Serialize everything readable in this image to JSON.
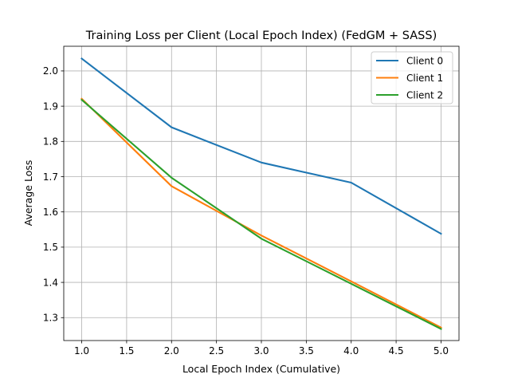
{
  "chart_data": {
    "type": "line",
    "title": "Training Loss per Client (Local Epoch Index) (FedGM + SASS)",
    "xlabel": "Local Epoch Index (Cumulative)",
    "ylabel": "Average Loss",
    "xlim": [
      0.8,
      5.2
    ],
    "ylim": [
      1.235,
      2.07
    ],
    "xticks": [
      1.0,
      1.5,
      2.0,
      2.5,
      3.0,
      3.5,
      4.0,
      4.5,
      5.0
    ],
    "xtick_labels": [
      "1.0",
      "1.5",
      "2.0",
      "2.5",
      "3.0",
      "3.5",
      "4.0",
      "4.5",
      "5.0"
    ],
    "yticks": [
      1.3,
      1.4,
      1.5,
      1.6,
      1.7,
      1.8,
      1.9,
      2.0
    ],
    "ytick_labels": [
      "1.3",
      "1.4",
      "1.5",
      "1.6",
      "1.7",
      "1.8",
      "1.9",
      "2.0"
    ],
    "grid": true,
    "legend_position": "top-right",
    "x": [
      1,
      2,
      3,
      4,
      5
    ],
    "series": [
      {
        "name": "Client 0",
        "color": "#1f77b4",
        "values": [
          2.035,
          1.84,
          1.74,
          1.683,
          1.538
        ]
      },
      {
        "name": "Client 1",
        "color": "#ff7f0e",
        "values": [
          1.921,
          1.673,
          1.533,
          1.403,
          1.272
        ]
      },
      {
        "name": "Client 2",
        "color": "#2ca02c",
        "values": [
          1.918,
          1.697,
          1.524,
          1.396,
          1.268
        ]
      }
    ]
  }
}
